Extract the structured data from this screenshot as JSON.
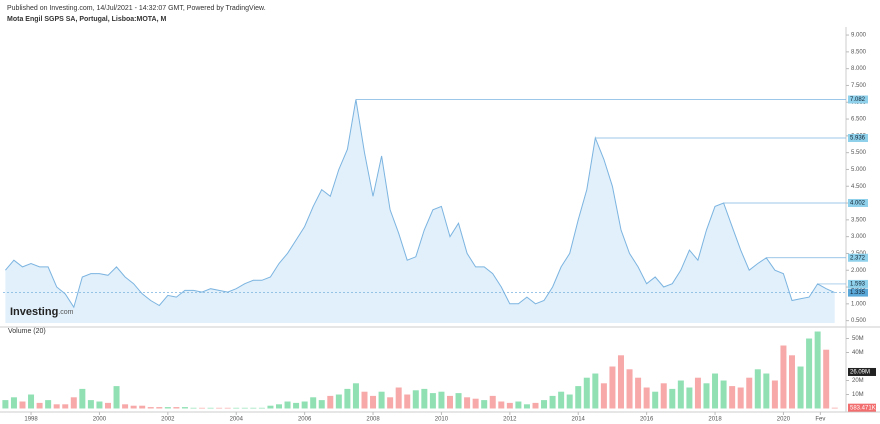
{
  "chart_data": {
    "type": "area",
    "subtitle": "Published on Investing.com, 14/Jul/2021 - 14:32:07 GMT, Powered by TradingView.",
    "title": "Mota Engil SGPS SA, Portugal, Lisboa:MOTA, M",
    "logo": "Investing",
    "logo_suffix": ".com",
    "x": [
      1997.25,
      1997.5,
      1997.75,
      1998,
      1998.25,
      1998.5,
      1998.75,
      1999,
      1999.25,
      1999.5,
      1999.75,
      2000,
      2000.25,
      2000.5,
      2000.75,
      2001,
      2001.25,
      2001.5,
      2001.75,
      2002,
      2002.25,
      2002.5,
      2002.75,
      2003,
      2003.25,
      2003.5,
      2003.75,
      2004,
      2004.25,
      2004.5,
      2004.75,
      2005,
      2005.25,
      2005.5,
      2005.75,
      2006,
      2006.25,
      2006.5,
      2006.75,
      2007,
      2007.25,
      2007.5,
      2007.75,
      2008,
      2008.25,
      2008.5,
      2008.75,
      2009,
      2009.25,
      2009.5,
      2009.75,
      2010,
      2010.25,
      2010.5,
      2010.75,
      2011,
      2011.25,
      2011.5,
      2011.75,
      2012,
      2012.25,
      2012.5,
      2012.75,
      2013,
      2013.25,
      2013.5,
      2013.75,
      2014,
      2014.25,
      2014.5,
      2014.75,
      2015,
      2015.25,
      2015.5,
      2015.75,
      2016,
      2016.25,
      2016.5,
      2016.75,
      2017,
      2017.25,
      2017.5,
      2017.75,
      2018,
      2018.25,
      2018.5,
      2018.75,
      2019,
      2019.25,
      2019.5,
      2019.75,
      2020,
      2020.25,
      2020.5,
      2020.75,
      2021,
      2021.25,
      2021.5
    ],
    "series": [
      {
        "color": "#7cb4e0",
        "fill": "#e1f0fb",
        "values": [
          2.0,
          2.3,
          2.1,
          2.2,
          2.1,
          2.1,
          1.5,
          1.3,
          0.9,
          1.8,
          1.9,
          1.9,
          1.85,
          2.1,
          1.8,
          1.6,
          1.3,
          1.1,
          0.95,
          1.25,
          1.2,
          1.4,
          1.4,
          1.35,
          1.45,
          1.4,
          1.35,
          1.45,
          1.6,
          1.7,
          1.7,
          1.8,
          2.2,
          2.5,
          2.9,
          3.3,
          3.9,
          4.4,
          4.2,
          5.0,
          5.6,
          7.082,
          5.5,
          4.2,
          5.4,
          3.8,
          3.1,
          2.3,
          2.4,
          3.2,
          3.8,
          3.9,
          3.0,
          3.4,
          2.5,
          2.1,
          2.1,
          1.9,
          1.5,
          1.0,
          1.0,
          1.2,
          1.0,
          1.1,
          1.5,
          2.1,
          2.5,
          3.5,
          4.4,
          5.936,
          5.3,
          4.5,
          3.2,
          2.5,
          2.1,
          1.6,
          1.8,
          1.5,
          1.6,
          2.0,
          2.6,
          2.3,
          3.2,
          3.9,
          4.002,
          3.3,
          2.6,
          2.0,
          2.2,
          2.372,
          2.0,
          1.9,
          1.1,
          1.15,
          1.2,
          1.593,
          1.45,
          1.335
        ]
      }
    ],
    "price_labels": [
      7.082,
      5.936,
      4.002,
      2.372,
      1.593,
      1.335
    ],
    "xlim": [
      1997.18,
      2021.8
    ],
    "xticks": [
      1998,
      2000,
      2002,
      2004,
      2006,
      2008,
      2010,
      2012,
      2014,
      2016,
      2018,
      2020,
      {
        "value": 2021.08,
        "label": "Fev"
      }
    ],
    "ylim": [
      0.43,
      9.21
    ],
    "yticks": [
      {
        "value": 0.5,
        "label": "0.500"
      },
      {
        "value": 1,
        "label": "1.000"
      },
      {
        "value": 1.5,
        "label": "1.500"
      },
      {
        "value": 2,
        "label": "2.000"
      },
      {
        "value": 2.5,
        "label": "2.500"
      },
      {
        "value": 3,
        "label": "3.000"
      },
      {
        "value": 3.5,
        "label": "3.500"
      },
      {
        "value": 4,
        "label": "4.000"
      },
      {
        "value": 4.5,
        "label": "4.500"
      },
      {
        "value": 5,
        "label": "5.000"
      },
      {
        "value": 5.5,
        "label": "5.500"
      },
      {
        "value": 6,
        "label": "6.000"
      },
      {
        "value": 6.5,
        "label": "6.500"
      },
      {
        "value": 7,
        "label": "7.000"
      },
      {
        "value": 7.5,
        "label": "7.500"
      },
      {
        "value": 8,
        "label": "8.000"
      },
      {
        "value": 8.5,
        "label": "8.500"
      },
      {
        "value": 9,
        "label": "9.000"
      }
    ],
    "volume": {
      "name": "Volume (20)",
      "up_color": "#90e0b4",
      "down_color": "#f7a9a9",
      "values": [
        6,
        8,
        5,
        10,
        4,
        6,
        3,
        3,
        8,
        14,
        6,
        5,
        4,
        16,
        3,
        2,
        2,
        1,
        1,
        1,
        1,
        1,
        0.5,
        0.5,
        0.5,
        0.5,
        0.5,
        0.5,
        0.5,
        0.5,
        0.5,
        2,
        3,
        5,
        4,
        5,
        8,
        6,
        9,
        10,
        14,
        18,
        12,
        9,
        12,
        8,
        15,
        10,
        13,
        14,
        11,
        12,
        9,
        11,
        8,
        7,
        6,
        9,
        5,
        4,
        5,
        3,
        4,
        6,
        9,
        12,
        10,
        16,
        22,
        25,
        18,
        30,
        38,
        28,
        22,
        15,
        12,
        18,
        14,
        20,
        15,
        22,
        18,
        25,
        20,
        16,
        15,
        22,
        28,
        25,
        20,
        45,
        38,
        30,
        50,
        55,
        42,
        0.583471
      ],
      "ylim": [
        0,
        52.5
      ],
      "yticks": [
        {
          "value": 10,
          "label": "10M"
        },
        {
          "value": 20,
          "label": "20M"
        },
        {
          "value": 40,
          "label": "40M"
        },
        {
          "value": 50,
          "label": "50M"
        }
      ],
      "ma_label": {
        "value": 26.09,
        "label": "26.09M"
      },
      "current_label": {
        "value": 0.583471,
        "label": "583.471K"
      }
    }
  }
}
